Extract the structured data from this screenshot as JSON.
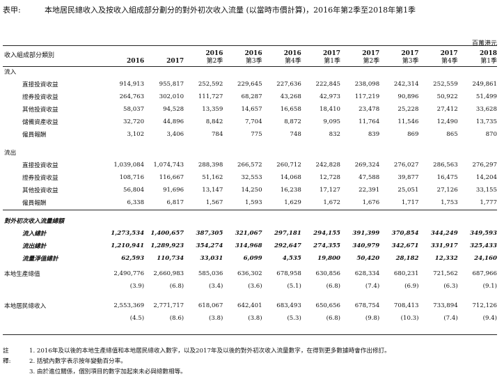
{
  "title": {
    "label": "表甲:",
    "text": "本地居民總收入及按收入組成部分劃分的對外初次收入流量 (以當時市價計算)，2016年第2季至2018年第1季"
  },
  "unit": "百萬港元",
  "header": {
    "category": "收入組成部分類別",
    "columns": [
      {
        "top": "2016",
        "sub": ""
      },
      {
        "top": "2017",
        "sub": ""
      },
      {
        "top": "2016",
        "sub": "第2季"
      },
      {
        "top": "2016",
        "sub": "第3季"
      },
      {
        "top": "2016",
        "sub": "第4季"
      },
      {
        "top": "2017",
        "sub": "第1季"
      },
      {
        "top": "2017",
        "sub": "第2季"
      },
      {
        "top": "2017",
        "sub": "第3季"
      },
      {
        "top": "2017",
        "sub": "第4季"
      },
      {
        "top": "2018",
        "sub": "第1季"
      }
    ]
  },
  "inflow": {
    "heading": "流入",
    "rows": [
      {
        "label": "直接投資收益",
        "values": [
          "914,913",
          "955,817",
          "252,592",
          "229,645",
          "227,636",
          "222,845",
          "238,098",
          "242,314",
          "252,559",
          "249,861"
        ]
      },
      {
        "label": "證券投資收益",
        "values": [
          "264,763",
          "302,010",
          "111,727",
          "68,287",
          "43,268",
          "42,973",
          "117,219",
          "90,896",
          "50,922",
          "51,499"
        ]
      },
      {
        "label": "其他投資收益",
        "values": [
          "58,037",
          "94,528",
          "13,359",
          "14,657",
          "16,658",
          "18,410",
          "23,478",
          "25,228",
          "27,412",
          "33,628"
        ]
      },
      {
        "label": "儲備資產收益",
        "values": [
          "32,720",
          "44,896",
          "8,842",
          "7,704",
          "8,872",
          "9,095",
          "11,764",
          "11,546",
          "12,490",
          "13,735"
        ]
      },
      {
        "label": "僱員報酬",
        "values": [
          "3,102",
          "3,406",
          "784",
          "775",
          "748",
          "832",
          "839",
          "869",
          "865",
          "870"
        ]
      }
    ]
  },
  "outflow": {
    "heading": "流出",
    "rows": [
      {
        "label": "直接投資收益",
        "values": [
          "1,039,084",
          "1,074,743",
          "288,398",
          "266,572",
          "260,712",
          "242,828",
          "269,324",
          "276,027",
          "286,563",
          "276,297"
        ]
      },
      {
        "label": "證券投資收益",
        "values": [
          "108,716",
          "116,667",
          "51,162",
          "32,553",
          "14,068",
          "12,728",
          "47,588",
          "39,877",
          "16,475",
          "14,204"
        ]
      },
      {
        "label": "其他投資收益",
        "values": [
          "56,804",
          "91,696",
          "13,147",
          "14,250",
          "16,238",
          "17,127",
          "22,391",
          "25,051",
          "27,126",
          "33,155"
        ]
      },
      {
        "label": "僱員報酬",
        "values": [
          "6,338",
          "6,817",
          "1,567",
          "1,593",
          "1,629",
          "1,672",
          "1,676",
          "1,717",
          "1,753",
          "1,777"
        ]
      }
    ]
  },
  "primary": {
    "heading": "對外初次收入流量總額",
    "rows": [
      {
        "label": "流入總計",
        "values": [
          "1,273,534",
          "1,400,657",
          "387,305",
          "321,067",
          "297,181",
          "294,155",
          "391,399",
          "370,854",
          "344,249",
          "349,593"
        ]
      },
      {
        "label": "流出總計",
        "values": [
          "1,210,941",
          "1,289,923",
          "354,274",
          "314,968",
          "292,647",
          "274,355",
          "340,979",
          "342,671",
          "331,917",
          "325,433"
        ]
      },
      {
        "label": "流量淨值總計",
        "values": [
          "62,593",
          "110,734",
          "33,031",
          "6,099",
          "4,535",
          "19,800",
          "50,420",
          "28,182",
          "12,332",
          "24,160"
        ]
      }
    ]
  },
  "gdp": {
    "label": "本地生產總值",
    "values": [
      "2,490,776",
      "2,660,983",
      "585,036",
      "636,302",
      "678,958",
      "630,856",
      "628,334",
      "680,231",
      "721,562",
      "687,966"
    ],
    "changes": [
      "(3.9)",
      "(6.8)",
      "(3.4)",
      "(3.6)",
      "(5.1)",
      "(6.8)",
      "(7.4)",
      "(6.9)",
      "(6.3)",
      "(9.1)"
    ]
  },
  "gni": {
    "label": "本地居民總收入",
    "values": [
      "2,553,369",
      "2,771,717",
      "618,067",
      "642,401",
      "683,493",
      "650,656",
      "678,754",
      "708,413",
      "733,894",
      "712,126"
    ],
    "changes": [
      "(4.5)",
      "(8.6)",
      "(3.8)",
      "(3.8)",
      "(5.3)",
      "(6.8)",
      "(9.8)",
      "(10.3)",
      "(7.4)",
      "(9.4)"
    ]
  },
  "notes": {
    "label": "註釋:",
    "items": [
      "1. 2016年及以後的本地生產總值和本地居民總收入數字，以及2017年及以後的對外初次收入流量數字，在得到更多數據時會作出修訂。",
      "2. 括號內數字表示按年變動百分率。",
      "3. 由於進位關係，個別項目的數字加起來未必與總數相等。"
    ]
  }
}
